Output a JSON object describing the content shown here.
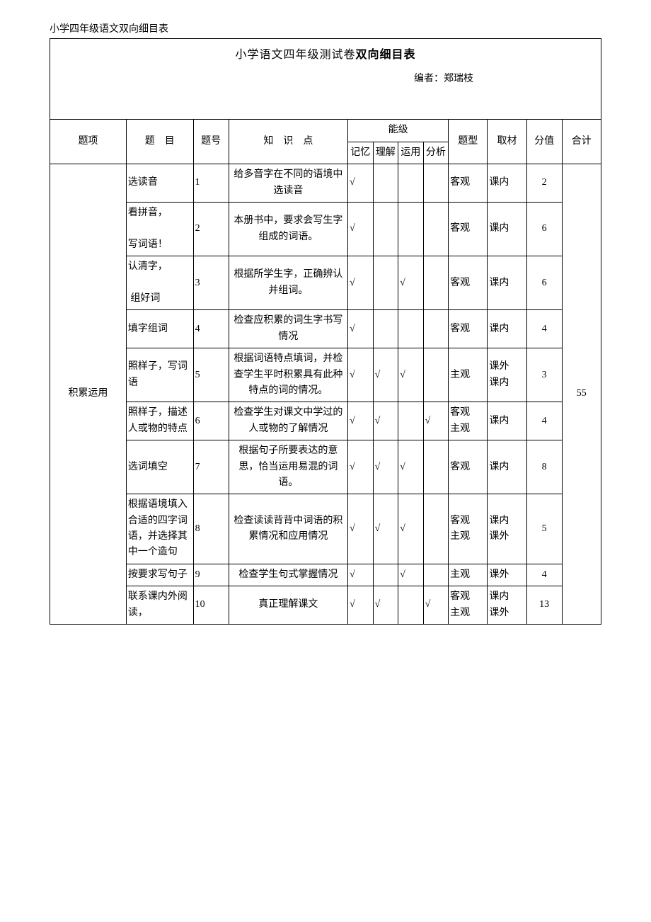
{
  "header": "小学四年级语文双向细目表",
  "title_part1": "小学语文四年级测试卷",
  "title_part2": "双向细目表",
  "author_label": "编者：郑瑞枝",
  "columns": {
    "tixiang": "题项",
    "timu": "题　目",
    "tihao": "题号",
    "zhishidian": "知　识　点",
    "nengji": "能级",
    "jiyi": "记忆",
    "lijie": "理解",
    "yunyong": "运用",
    "fenxi": "分析",
    "tixing": "题型",
    "qucai": "取材",
    "fenzhi": "分值",
    "heji": "合计"
  },
  "section": "积累运用",
  "section_total": "55",
  "rows": [
    {
      "timu": "选读音",
      "tihao": "1",
      "zhishi": "给多音字在不同的语境中选读音",
      "jiyi": "√",
      "lijie": "",
      "yunyong": "",
      "fenxi": "",
      "tixing": "客观",
      "qucai": "课内",
      "fenzhi": "2"
    },
    {
      "timu": "看拼音，\n写词语！",
      "tihao": "2",
      "zhishi": "本册书中，要求会写生字组成的词语。",
      "jiyi": "√",
      "lijie": "",
      "yunyong": "",
      "fenxi": "",
      "tixing": "客观",
      "qucai": "课内",
      "fenzhi": "6"
    },
    {
      "timu": "认清字，\n组好词",
      "tihao": "3",
      "zhishi": "根据所学生字，正确辨认并组词。",
      "jiyi": "√",
      "lijie": "",
      "yunyong": "√",
      "fenxi": "",
      "tixing": "客观",
      "qucai": "课内",
      "fenzhi": "6"
    },
    {
      "timu": "填字组词",
      "tihao": "4",
      "zhishi": "检查应积累的词生字书写情况",
      "jiyi": "√",
      "lijie": "",
      "yunyong": "",
      "fenxi": "",
      "tixing": "客观",
      "qucai": "课内",
      "fenzhi": "4"
    },
    {
      "timu": "照样子，写词语",
      "tihao": "5",
      "zhishi": "根据词语特点填词，并检查学生平时积累具有此种特点的词的情况。",
      "jiyi": "√",
      "lijie": "√",
      "yunyong": "√",
      "fenxi": "",
      "tixing": "主观",
      "qucai": "课外课内",
      "fenzhi": "3"
    },
    {
      "timu": "照样子，描述人或物的特点",
      "tihao": "6",
      "zhishi": "检查学生对课文中学过的人或物的了解情况",
      "jiyi": "√",
      "lijie": "√",
      "yunyong": "",
      "fenxi": "√",
      "tixing": "客观主观",
      "qucai": "课内",
      "fenzhi": "4"
    },
    {
      "timu": "选词填空",
      "tihao": "7",
      "zhishi": "根据句子所要表达的意思，恰当运用易混的词语。",
      "jiyi": "√",
      "lijie": "√",
      "yunyong": "√",
      "fenxi": "",
      "tixing": "客观",
      "qucai": "课内",
      "fenzhi": "8"
    },
    {
      "timu": "根据语境填入合适的四字词语，并选择其中一个造句",
      "tihao": "8",
      "zhishi": "检查读读背背中词语的积累情况和应用情况",
      "jiyi": "√",
      "lijie": "√",
      "yunyong": "√",
      "fenxi": "",
      "tixing": "客观主观",
      "qucai": "课内课外",
      "fenzhi": "5"
    },
    {
      "timu": "按要求写句子",
      "tihao": "9",
      "zhishi": "检查学生句式掌握情况",
      "jiyi": "√",
      "lijie": "",
      "yunyong": "√",
      "fenxi": "",
      "tixing": "主观",
      "qucai": "课外",
      "fenzhi": "4"
    },
    {
      "timu": "联系课内外阅读，",
      "tihao": "10",
      "zhishi": "真正理解课文",
      "jiyi": "√",
      "lijie": "√",
      "yunyong": "",
      "fenxi": "√",
      "tixing": "客观主观",
      "qucai": "课内课外",
      "fenzhi": "13"
    }
  ]
}
